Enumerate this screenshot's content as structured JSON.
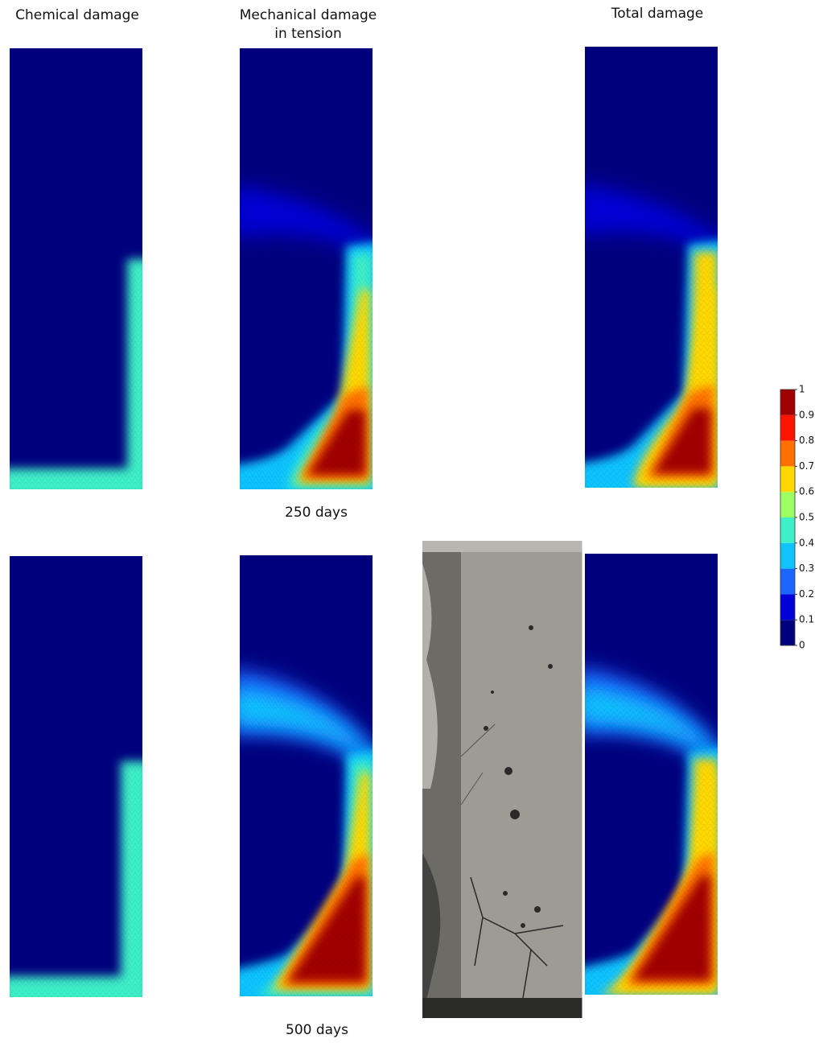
{
  "figure": {
    "chemical_title": "Chemical damage",
    "mechanical_title": [
      "Mechanical damage",
      "in tension"
    ],
    "total_title": "Total damage",
    "rows": [
      "250 days",
      "500 days"
    ],
    "colorbar": {
      "ticks": [
        1,
        0.9,
        0.8,
        0.7,
        0.6,
        0.5,
        0.4,
        0.3,
        0.2,
        0.1,
        0
      ],
      "lim": [
        0,
        1
      ],
      "colors": [
        "#00007f",
        "#0000d8",
        "#1a66ff",
        "#10c4ff",
        "#3ef0c8",
        "#9cff64",
        "#ffd800",
        "#ff7000",
        "#ff1400",
        "#a00000"
      ]
    }
  }
}
